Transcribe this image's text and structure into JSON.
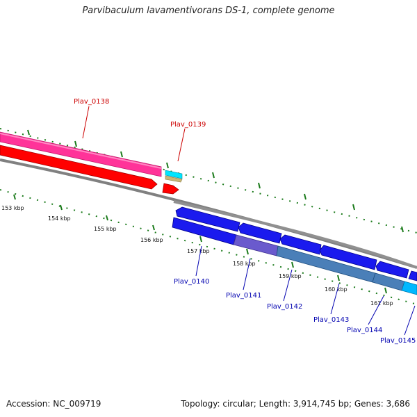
{
  "title": "Parvibaculum lavamentivorans DS-1, complete genome",
  "footer": {
    "accession": "Accession: NC_009719",
    "summary": "Topology: circular; Length: 3,914,745 bp; Genes: 3,686"
  },
  "tick_labels": [
    "153 kbp",
    "154 kbp",
    "155 kbp",
    "156 kbp",
    "157 kbp",
    "158 kbp",
    "159 kbp",
    "160 kbp",
    "161 kbp"
  ],
  "genes_top": [
    {
      "name": "Plav_0138",
      "color": "#cc0000"
    },
    {
      "name": "Plav_0139",
      "color": "#cc0000"
    }
  ],
  "genes_bottom": [
    {
      "name": "Plav_0140",
      "color": "#0000b0"
    },
    {
      "name": "Plav_0141",
      "color": "#0000b0"
    },
    {
      "name": "Plav_0142",
      "color": "#0000b0"
    },
    {
      "name": "Plav_0143",
      "color": "#0000b0"
    },
    {
      "name": "Plav_0144",
      "color": "#0000b0"
    },
    {
      "name": "Plav_0145",
      "color": "#0000b0"
    }
  ],
  "colors": {
    "pink_track": "#ff3399",
    "red_track": "#ff0000",
    "blue_track": "#1a1aee",
    "backbone": "#808080",
    "ticks": "#1a7a1a",
    "purple_segment": "#6a5acd",
    "steel_segment": "#4a7fb8",
    "cyan": "#00e5ff",
    "khaki": "#c8b878"
  }
}
